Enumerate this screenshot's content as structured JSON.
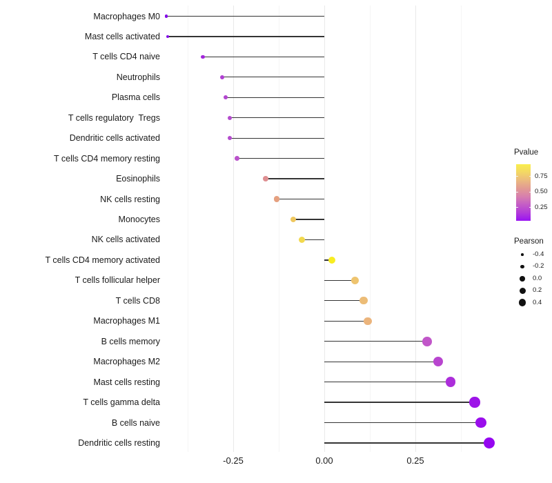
{
  "chart_data": {
    "type": "scatter",
    "subtype": "lollipop",
    "title": "",
    "xlabel": "",
    "ylabel": "",
    "xlim": [
      -0.478,
      0.5
    ],
    "baseline_x": 0,
    "x_ticks": [
      {
        "value": -0.25,
        "label": "-0.25"
      },
      {
        "value": 0.0,
        "label": "0.00"
      },
      {
        "value": 0.25,
        "label": "0.25"
      }
    ],
    "grid": {
      "major_x": [
        -0.25,
        0.0,
        0.25
      ],
      "minor_x": [
        -0.375,
        -0.125,
        0.125,
        0.375
      ]
    },
    "points": [
      {
        "label": "Macrophages M0",
        "pearson": -0.434,
        "pvalue_est": 0.004,
        "color": "#8409E9"
      },
      {
        "label": "Mast cells activated",
        "pearson": -0.43,
        "pvalue_est": 0.004,
        "color": "#8409E9"
      },
      {
        "label": "T cells CD4 naive",
        "pearson": -0.333,
        "pvalue_est": 0.03,
        "color": "#A226DA"
      },
      {
        "label": "Neutrophils",
        "pearson": -0.28,
        "pvalue_est": 0.07,
        "color": "#AF3FD2"
      },
      {
        "label": "Plasma cells",
        "pearson": -0.271,
        "pvalue_est": 0.08,
        "color": "#B246CF"
      },
      {
        "label": "T cells regulatory  Tregs",
        "pearson": -0.259,
        "pvalue_est": 0.09,
        "color": "#B44BCE"
      },
      {
        "label": "Dendritic cells activated",
        "pearson": -0.259,
        "pvalue_est": 0.09,
        "color": "#B44BCE"
      },
      {
        "label": "T cells CD4 memory resting",
        "pearson": -0.24,
        "pvalue_est": 0.11,
        "color": "#BA52CB"
      },
      {
        "label": "Eosinophils",
        "pearson": -0.161,
        "pvalue_est": 0.5,
        "color": "#DE8F92"
      },
      {
        "label": "NK cells resting",
        "pearson": -0.131,
        "pvalue_est": 0.57,
        "color": "#E5A07F"
      },
      {
        "label": "Monocytes",
        "pearson": -0.085,
        "pvalue_est": 0.72,
        "color": "#EFC75F"
      },
      {
        "label": "NK cells activated",
        "pearson": -0.061,
        "pvalue_est": 0.79,
        "color": "#F2D94E"
      },
      {
        "label": "T cells CD4 memory activated",
        "pearson": 0.021,
        "pvalue_est": 0.93,
        "color": "#F8ED21"
      },
      {
        "label": "T cells follicular helper",
        "pearson": 0.085,
        "pvalue_est": 0.7,
        "color": "#EEC46F"
      },
      {
        "label": "T cells CD8",
        "pearson": 0.108,
        "pvalue_est": 0.66,
        "color": "#ECBC77"
      },
      {
        "label": "Macrophages M1",
        "pearson": 0.119,
        "pvalue_est": 0.63,
        "color": "#EBB47C"
      },
      {
        "label": "B cells memory",
        "pearson": 0.282,
        "pvalue_est": 0.24,
        "color": "#C156C9"
      },
      {
        "label": "Macrophages M2",
        "pearson": 0.313,
        "pvalue_est": 0.19,
        "color": "#B845CF"
      },
      {
        "label": "Mast cells resting",
        "pearson": 0.347,
        "pvalue_est": 0.13,
        "color": "#AC2EDA"
      },
      {
        "label": "T cells gamma delta",
        "pearson": 0.413,
        "pvalue_est": 0.07,
        "color": "#9D14E8"
      },
      {
        "label": "B cells naive",
        "pearson": 0.43,
        "pvalue_est": 0.05,
        "color": "#9A0EEC"
      },
      {
        "label": "Dendritic cells resting",
        "pearson": 0.453,
        "pvalue_est": 0.04,
        "color": "#9506F0"
      }
    ],
    "legend": {
      "pvalue": {
        "title": "Pvalue",
        "range": [
          0.03,
          0.94
        ],
        "ticks": [
          {
            "value": 0.75,
            "label": "0.75"
          },
          {
            "value": 0.5,
            "label": "0.50"
          },
          {
            "value": 0.25,
            "label": "0.25"
          }
        ],
        "gradient_stops_bottom_to_top": [
          "#9913F3",
          "#B23BD9",
          "#C45DC6",
          "#D77FAE",
          "#E29A93",
          "#EBB97F",
          "#F3D765",
          "#F9EE4D"
        ]
      },
      "pearson": {
        "title": "Pearson",
        "dot_color": "#111111",
        "items": [
          {
            "value": -0.4,
            "label": "-0.4",
            "size": 3.5
          },
          {
            "value": -0.2,
            "label": "-0.2",
            "size": 5.5
          },
          {
            "value": 0.0,
            "label": "0.0",
            "size": 7.5
          },
          {
            "value": 0.2,
            "label": "0.2",
            "size": 9.0
          },
          {
            "value": 0.4,
            "label": "0.4",
            "size": 10.5
          }
        ]
      }
    }
  },
  "colors": {
    "stem": "#333333",
    "grid_major": "#e9e9e9",
    "grid_minor": "#f5f5f5",
    "text": "#1a1a1a",
    "background": "#ffffff"
  }
}
